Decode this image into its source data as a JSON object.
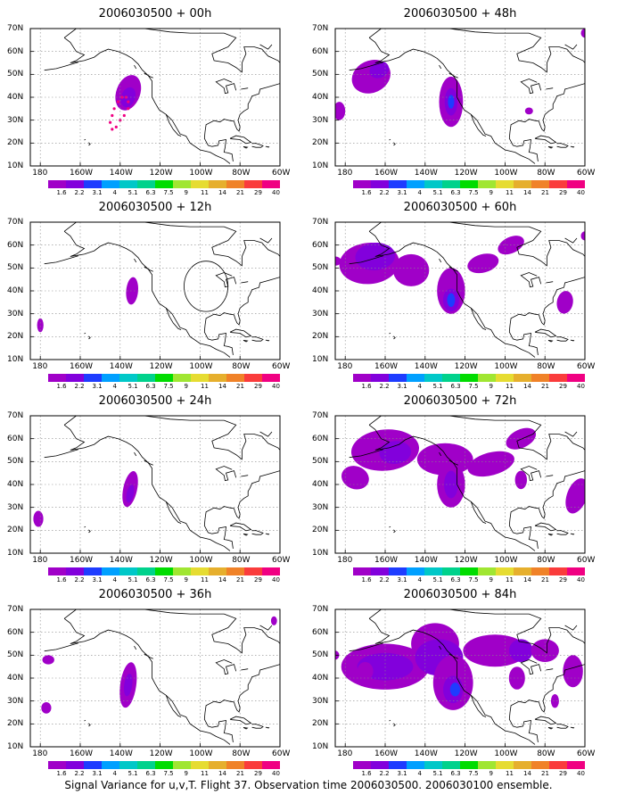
{
  "caption": "Signal Variance for u,v,T. Flight 37. Observation time 2006030500. 2006030100 ensemble.",
  "colors": {
    "levels": [
      "#a000c8",
      "#8200dc",
      "#1e3cff",
      "#00a0ff",
      "#00c8c8",
      "#00d28c",
      "#00dc00",
      "#a0e632",
      "#e6dc32",
      "#e6af2d",
      "#f08228",
      "#fa3c3c",
      "#f00082"
    ],
    "land_line": "#000000",
    "grid": "#888888"
  },
  "colorbar_labels": [
    "1.6",
    "2.2",
    "3.1",
    "4",
    "5.1",
    "6.3",
    "7.5",
    "9",
    "11",
    "14",
    "21",
    "29",
    "40"
  ],
  "lat_ticks": [
    "10N",
    "20N",
    "30N",
    "40N",
    "50N",
    "60N",
    "70N"
  ],
  "lon_ticks": [
    "180",
    "160W",
    "140W",
    "120W",
    "100W",
    "80W",
    "60W"
  ],
  "panels": [
    {
      "title": "2006030500 + 00h"
    },
    {
      "title": "2006030500 + 48h"
    },
    {
      "title": "2006030500 + 12h"
    },
    {
      "title": "2006030500 + 60h"
    },
    {
      "title": "2006030500 + 24h"
    },
    {
      "title": "2006030500 + 72h"
    },
    {
      "title": "2006030500 + 36h"
    },
    {
      "title": "2006030500 + 84h"
    }
  ],
  "map_extent": {
    "lon": [
      -185,
      -60
    ],
    "lat": [
      10,
      70
    ]
  }
}
